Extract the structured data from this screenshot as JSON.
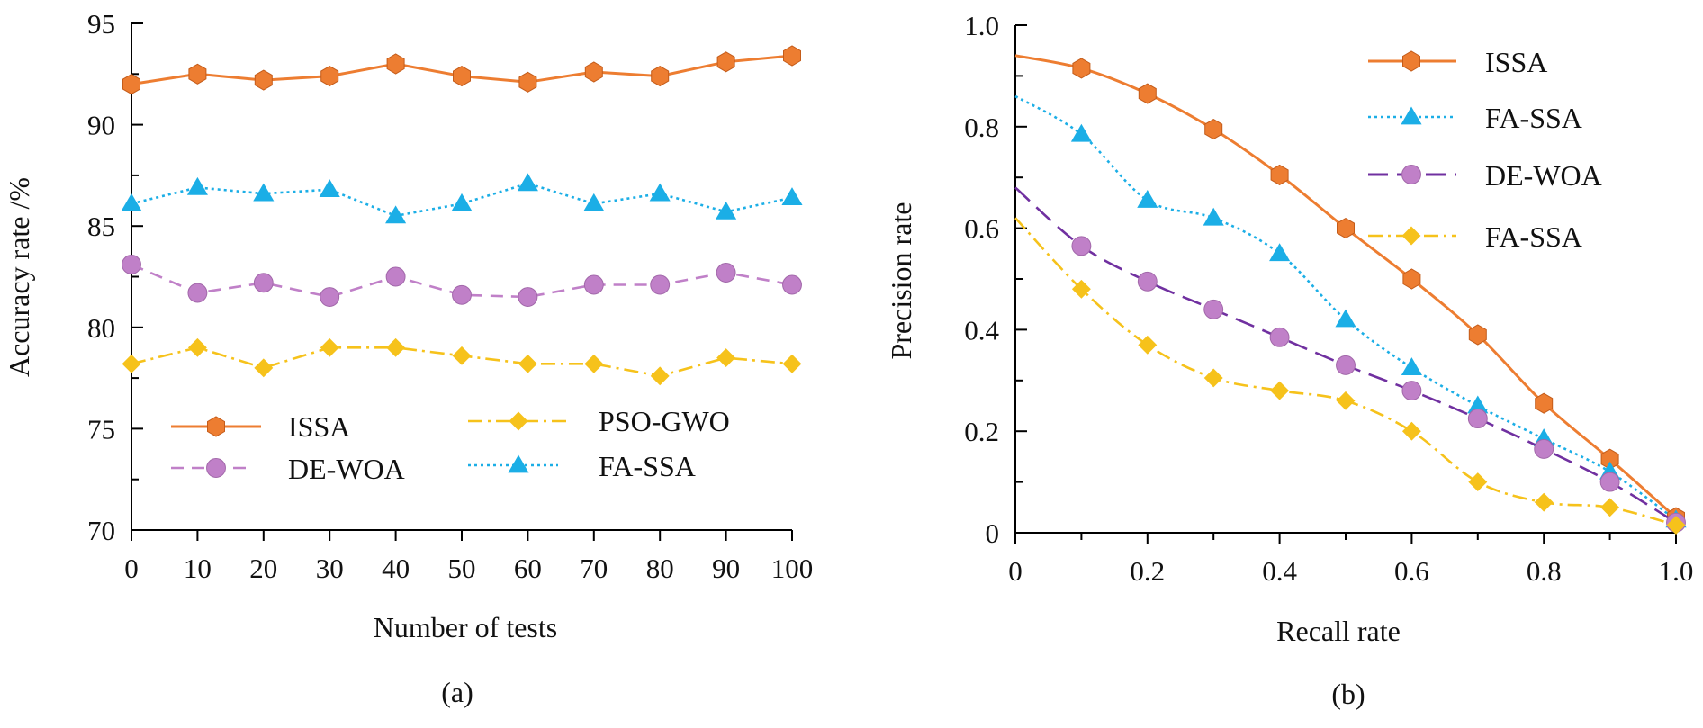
{
  "colors": {
    "ISSA": "#ED7D31",
    "FA-SSA": "#1BAEE6",
    "DE-WOA": "#C080C8",
    "DE-WOA-b": "#7030A0",
    "PSO-GWO": "#F6C21B"
  },
  "chart_data": [
    {
      "id": "a",
      "type": "line",
      "caption": "(a)",
      "xlabel": "Number of tests",
      "ylabel": "Accuracy rate /%",
      "xlim": [
        0,
        100
      ],
      "ylim": [
        70,
        95
      ],
      "xticks": [
        0,
        10,
        20,
        30,
        40,
        50,
        60,
        70,
        80,
        90,
        100
      ],
      "yticks": [
        70,
        75,
        80,
        85,
        90,
        95
      ],
      "x": [
        0,
        10,
        20,
        30,
        40,
        50,
        60,
        70,
        80,
        90,
        100
      ],
      "series": [
        {
          "name": "ISSA",
          "color_key": "ISSA",
          "marker": "hexagon",
          "dash": "solid",
          "smooth": false,
          "values": [
            92.0,
            92.5,
            92.2,
            92.4,
            93.0,
            92.4,
            92.1,
            92.6,
            92.4,
            93.1,
            93.4
          ]
        },
        {
          "name": "FA-SSA",
          "color_key": "FA-SSA",
          "marker": "triangle",
          "dash": "dot",
          "smooth": false,
          "values": [
            86.1,
            86.9,
            86.6,
            86.8,
            85.5,
            86.1,
            87.1,
            86.1,
            86.6,
            85.7,
            86.4
          ]
        },
        {
          "name": "DE-WOA",
          "color_key": "DE-WOA",
          "marker": "circle",
          "dash": "dash",
          "smooth": false,
          "values": [
            83.1,
            81.7,
            82.2,
            81.5,
            82.5,
            81.6,
            81.5,
            82.1,
            82.1,
            82.7,
            82.1
          ]
        },
        {
          "name": "PSO-GWO",
          "color_key": "PSO-GWO",
          "marker": "diamond",
          "dash": "dashdot",
          "smooth": false,
          "values": [
            78.2,
            79.0,
            78.0,
            79.0,
            79.0,
            78.6,
            78.2,
            78.2,
            77.6,
            78.5,
            78.2
          ]
        }
      ],
      "legend_position": "bottom"
    },
    {
      "id": "b",
      "type": "line",
      "caption": "(b)",
      "xlabel": "Recall rate",
      "ylabel": "Precision rate",
      "xlim": [
        0,
        1
      ],
      "ylim": [
        0,
        1
      ],
      "xticks": [
        "0",
        "0.2",
        "0.4",
        "0.6",
        "0.8",
        "1.0"
      ],
      "yticks": [
        "0",
        "0.2",
        "0.4",
        "0.6",
        "0.8",
        "1.0"
      ],
      "x": [
        0.1,
        0.2,
        0.3,
        0.4,
        0.5,
        0.6,
        0.7,
        0.8,
        0.9,
        1.0
      ],
      "series": [
        {
          "name": "ISSA",
          "color_key": "ISSA",
          "marker": "hexagon",
          "dash": "solid",
          "smooth": true,
          "start_y": 0.94,
          "values": [
            0.915,
            0.865,
            0.795,
            0.705,
            0.6,
            0.5,
            0.39,
            0.255,
            0.145,
            0.03
          ]
        },
        {
          "name": "FA-SSA",
          "color_key": "FA-SSA",
          "marker": "triangle",
          "dash": "dot",
          "smooth": true,
          "start_y": 0.86,
          "values": [
            0.785,
            0.655,
            0.62,
            0.55,
            0.42,
            0.325,
            0.25,
            0.185,
            0.12,
            0.025
          ]
        },
        {
          "name": "DE-WOA",
          "color_key": "DE-WOA-b",
          "marker": "circle",
          "dash": "longdash",
          "smooth": true,
          "start_y": 0.68,
          "values": [
            0.565,
            0.495,
            0.44,
            0.385,
            0.33,
            0.28,
            0.225,
            0.165,
            0.1,
            0.02
          ]
        },
        {
          "name": "FA-SSA",
          "color_key": "PSO-GWO",
          "marker": "diamond",
          "dash": "dashdot",
          "smooth": true,
          "start_y": 0.62,
          "values": [
            0.48,
            0.37,
            0.305,
            0.28,
            0.26,
            0.2,
            0.1,
            0.06,
            0.05,
            0.015
          ]
        }
      ],
      "legend_position": "top-right"
    }
  ]
}
